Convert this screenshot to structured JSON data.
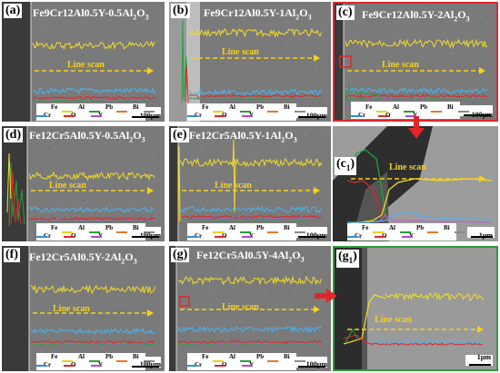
{
  "panels": [
    {
      "id": "a",
      "label": "(a)",
      "title_main": "Fe9Cr12Al0.5Y-0.5Al",
      "title_sub": "2",
      "title_tail": "O",
      "title_sub2": "3",
      "scale": "100µm"
    },
    {
      "id": "b",
      "label": "(b)",
      "title_main": "Fe9Cr12Al0.5Y-1Al",
      "title_sub": "2",
      "title_tail": "O",
      "title_sub2": "3",
      "scale": "100µm"
    },
    {
      "id": "c",
      "label": "(c)",
      "title_main": "Fe9Cr12Al0.5Y-2Al",
      "title_sub": "2",
      "title_tail": "O",
      "title_sub2": "3",
      "scale": "100µm"
    },
    {
      "id": "d",
      "label": "(d)",
      "title_main": "Fe12Cr5Al0.5Y-0.5Al",
      "title_sub": "2",
      "title_tail": "O",
      "title_sub2": "3",
      "scale": "100µm"
    },
    {
      "id": "e",
      "label": "(e)",
      "title_main": "Fe12Cr5Al0.5Y-1Al",
      "title_sub": "2",
      "title_tail": "O",
      "title_sub2": "3",
      "scale": "100µm"
    },
    {
      "id": "c1",
      "label": "(c",
      "label_sub": "1",
      "label_tail": ")",
      "scale": "1µm"
    },
    {
      "id": "f",
      "label": "(f)",
      "title_main": "Fe12Cr5Al0.5Y-2Al",
      "title_sub": "2",
      "title_tail": "O",
      "title_sub2": "3",
      "scale": "100µm"
    },
    {
      "id": "g",
      "label": "(g)",
      "title_main": "Fe12Cr5Al0.5Y-4Al",
      "title_sub": "2",
      "title_tail": "O",
      "title_sub2": "3",
      "scale": "100µm"
    },
    {
      "id": "g1",
      "label": "(g",
      "label_sub": "1",
      "label_tail": ")",
      "scale": "1µm"
    }
  ],
  "line_scan_label": "Line scan",
  "legend": {
    "row1": [
      {
        "name": "Fe",
        "color": "#e8d21a"
      },
      {
        "name": "Al",
        "color": "#2e9e3a"
      },
      {
        "name": "Pb",
        "color": "#e07a2c"
      },
      {
        "name": "Bi",
        "color": "#8a8a8a"
      }
    ],
    "row2": [
      {
        "name": "Cr",
        "color": "#2f8fd8"
      },
      {
        "name": "O",
        "color": "#e0262c"
      },
      {
        "name": "Y",
        "color": "#b04ac8"
      }
    ]
  },
  "colors": {
    "fe": "#f2dc2a",
    "al": "#22a33c",
    "cr": "#4ab3f0",
    "o": "#e42428",
    "y": "#c25ad8",
    "pb": "#e07a2c",
    "scan": "#f5d21c",
    "frame_red": "#e0262c",
    "frame_green": "#2f9a3a"
  }
}
